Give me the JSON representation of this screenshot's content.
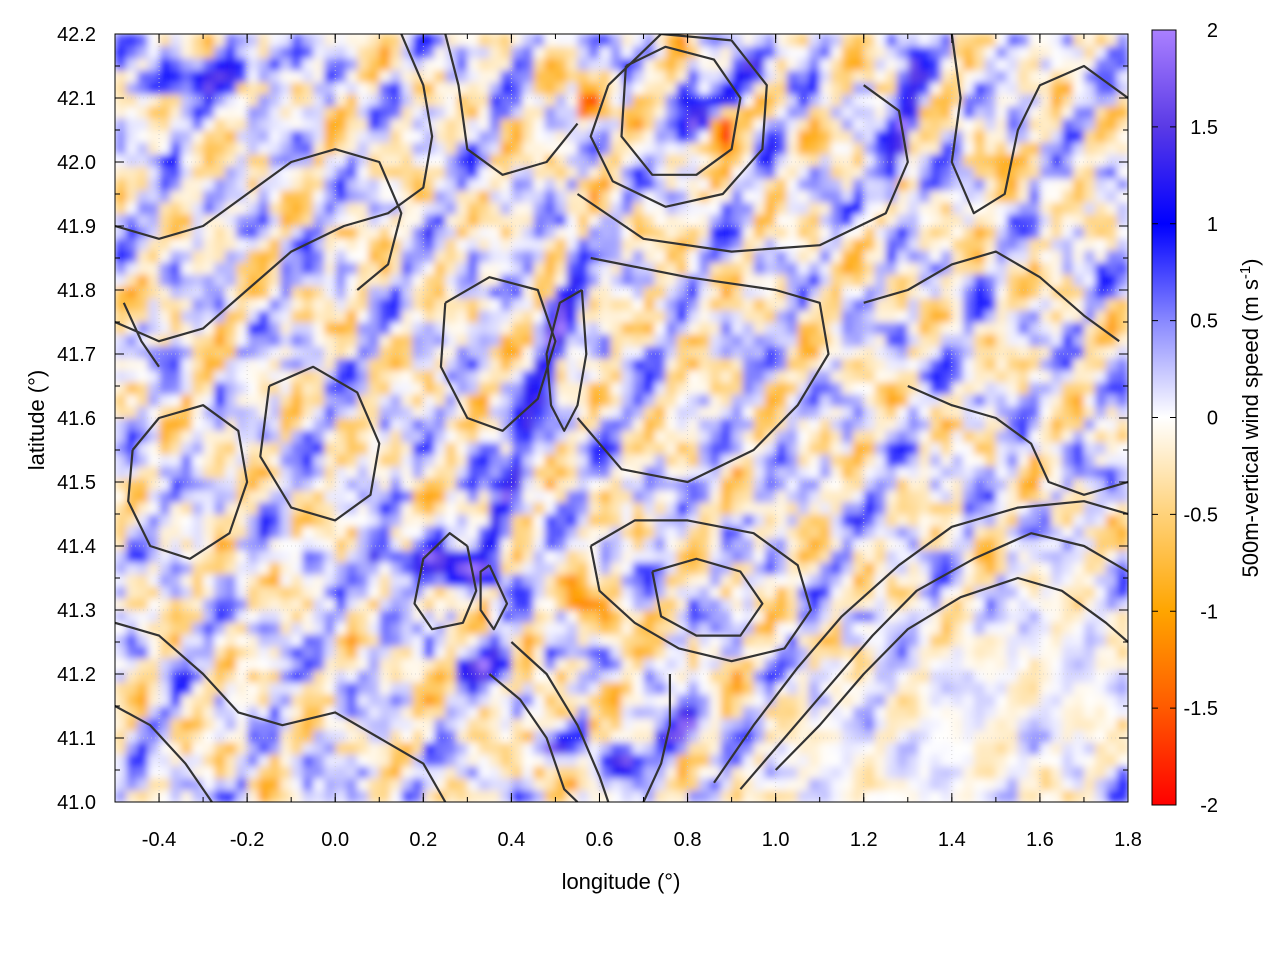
{
  "chart_data": {
    "type": "heatmap",
    "title": "",
    "xlabel": "longitude (°)",
    "ylabel": "latitude (°)",
    "colorbar_label": "500m-vertical wind speed (m s",
    "colorbar_label_sup": "-1",
    "colorbar_label_end": ")",
    "xlim": [
      -0.5,
      1.8
    ],
    "ylim": [
      41.0,
      42.2
    ],
    "clim": [
      -2,
      2
    ],
    "x_ticks": [
      "-0.4",
      "-0.2",
      "0.0",
      "0.2",
      "0.4",
      "0.6",
      "0.8",
      "1.0",
      "1.2",
      "1.4",
      "1.6",
      "1.8"
    ],
    "x_tick_values": [
      -0.4,
      -0.2,
      0.0,
      0.2,
      0.4,
      0.6,
      0.8,
      1.0,
      1.2,
      1.4,
      1.6,
      1.8
    ],
    "y_ticks": [
      "41.0",
      "41.1",
      "41.2",
      "41.3",
      "41.4",
      "41.5",
      "41.6",
      "41.7",
      "41.8",
      "41.9",
      "42.0",
      "42.1",
      "42.2"
    ],
    "y_tick_values": [
      41.0,
      41.1,
      41.2,
      41.3,
      41.4,
      41.5,
      41.6,
      41.7,
      41.8,
      41.9,
      42.0,
      42.1,
      42.2
    ],
    "colorbar_ticks": [
      "2",
      "1.5",
      "1",
      "0.5",
      "0",
      "-0.5",
      "-1",
      "-1.5",
      "-2"
    ],
    "colorbar_tick_values": [
      2,
      1.5,
      1,
      0.5,
      0,
      -0.5,
      -1,
      -1.5,
      -2
    ],
    "colormap": [
      {
        "value": -2.0,
        "color": "#ff0000"
      },
      {
        "value": -1.5,
        "color": "#ff5a00"
      },
      {
        "value": -1.0,
        "color": "#ffa500"
      },
      {
        "value": -0.5,
        "color": "#ffd27a"
      },
      {
        "value": 0.0,
        "color": "#ffffff"
      },
      {
        "value": 0.5,
        "color": "#8888ff"
      },
      {
        "value": 1.0,
        "color": "#0000ff"
      },
      {
        "value": 1.5,
        "color": "#5a3ae6"
      },
      {
        "value": 2.0,
        "color": "#aa80ff"
      }
    ],
    "grid": true,
    "contour_color": "#333333",
    "features": {
      "updraft_bands": [
        {
          "from": [
            0.35,
            41.4
          ],
          "to": [
            0.55,
            41.85
          ],
          "w": 1.2
        },
        {
          "from": [
            0.8,
            42.05
          ],
          "to": [
            0.95,
            42.15
          ],
          "w": 1.6
        },
        {
          "from": [
            1.25,
            41.95
          ],
          "to": [
            1.32,
            42.15
          ],
          "w": 1.3
        },
        {
          "from": [
            -0.45,
            42.12
          ],
          "to": [
            -0.15,
            42.15
          ],
          "w": 1.0
        },
        {
          "from": [
            0.3,
            41.21
          ],
          "to": [
            0.5,
            41.23
          ],
          "w": 1.1
        },
        {
          "from": [
            0.45,
            41.07
          ],
          "to": [
            0.55,
            41.1
          ],
          "w": 1.8
        },
        {
          "from": [
            0.66,
            41.06
          ],
          "to": [
            0.8,
            41.12
          ],
          "w": 1.7
        },
        {
          "from": [
            0.1,
            41.38
          ],
          "to": [
            0.35,
            41.36
          ],
          "w": 1.4
        }
      ],
      "downdraft_spots": [
        {
          "at": [
            0.88,
            42.05
          ],
          "w": -2.0
        },
        {
          "at": [
            0.46,
            41.06
          ],
          "w": -1.8
        },
        {
          "at": [
            0.52,
            41.12
          ],
          "w": -1.5
        },
        {
          "at": [
            0.7,
            41.08
          ],
          "w": -1.5
        },
        {
          "at": [
            0.43,
            41.22
          ],
          "w": -1.3
        },
        {
          "at": [
            0.55,
            41.32
          ],
          "w": -1.0
        },
        {
          "at": [
            0.62,
            41.28
          ],
          "w": -0.9
        },
        {
          "at": [
            1.5,
            41.98
          ],
          "w": -0.8
        },
        {
          "at": [
            0.58,
            42.09
          ],
          "w": -1.3
        }
      ],
      "calm_region": [
        {
          "at": [
            1.4,
            41.1
          ],
          "radius": 0.3
        },
        {
          "at": [
            1.65,
            41.2
          ],
          "radius": 0.25
        },
        {
          "at": [
            1.15,
            41.05
          ],
          "radius": 0.2
        }
      ]
    },
    "contours": [
      [
        [
          0.3,
          41.4
        ],
        [
          0.32,
          41.33
        ],
        [
          0.29,
          41.28
        ],
        [
          0.22,
          41.27
        ],
        [
          0.18,
          41.31
        ],
        [
          0.2,
          41.38
        ],
        [
          0.26,
          41.42
        ],
        [
          0.3,
          41.4
        ]
      ],
      [
        [
          0.35,
          41.37
        ],
        [
          0.39,
          41.31
        ],
        [
          0.36,
          41.27
        ],
        [
          0.33,
          41.3
        ],
        [
          0.33,
          41.36
        ],
        [
          0.35,
          41.37
        ]
      ],
      [
        [
          0.56,
          41.8
        ],
        [
          0.57,
          41.7
        ],
        [
          0.55,
          41.62
        ],
        [
          0.52,
          41.58
        ],
        [
          0.49,
          41.62
        ],
        [
          0.48,
          41.7
        ],
        [
          0.51,
          41.78
        ],
        [
          0.56,
          41.8
        ]
      ],
      [
        [
          -0.46,
          41.55
        ],
        [
          -0.4,
          41.6
        ],
        [
          -0.3,
          41.62
        ],
        [
          -0.22,
          41.58
        ],
        [
          -0.2,
          41.5
        ],
        [
          -0.24,
          41.42
        ],
        [
          -0.33,
          41.38
        ],
        [
          -0.42,
          41.4
        ],
        [
          -0.47,
          41.47
        ],
        [
          -0.46,
          41.55
        ]
      ],
      [
        [
          -0.15,
          41.65
        ],
        [
          -0.05,
          41.68
        ],
        [
          0.05,
          41.64
        ],
        [
          0.1,
          41.56
        ],
        [
          0.08,
          41.48
        ],
        [
          0.0,
          41.44
        ],
        [
          -0.1,
          41.46
        ],
        [
          -0.17,
          41.54
        ],
        [
          -0.15,
          41.65
        ]
      ],
      [
        [
          0.25,
          41.78
        ],
        [
          0.35,
          41.82
        ],
        [
          0.46,
          41.8
        ],
        [
          0.5,
          41.72
        ],
        [
          0.46,
          41.63
        ],
        [
          0.38,
          41.58
        ],
        [
          0.3,
          41.6
        ],
        [
          0.24,
          41.68
        ],
        [
          0.25,
          41.78
        ]
      ],
      [
        [
          0.66,
          42.15
        ],
        [
          0.75,
          42.18
        ],
        [
          0.86,
          42.16
        ],
        [
          0.92,
          42.1
        ],
        [
          0.9,
          42.02
        ],
        [
          0.82,
          41.98
        ],
        [
          0.72,
          41.98
        ],
        [
          0.65,
          42.04
        ],
        [
          0.66,
          42.15
        ]
      ],
      [
        [
          0.62,
          42.12
        ],
        [
          0.74,
          42.2
        ],
        [
          0.9,
          42.19
        ],
        [
          0.98,
          42.12
        ],
        [
          0.97,
          42.02
        ],
        [
          0.88,
          41.95
        ],
        [
          0.75,
          41.93
        ],
        [
          0.63,
          41.97
        ],
        [
          0.58,
          42.04
        ],
        [
          0.62,
          42.12
        ]
      ],
      [
        [
          0.55,
          41.95
        ],
        [
          0.7,
          41.88
        ],
        [
          0.9,
          41.86
        ],
        [
          1.1,
          41.87
        ],
        [
          1.25,
          41.92
        ],
        [
          1.3,
          42.0
        ],
        [
          1.28,
          42.08
        ],
        [
          1.2,
          42.12
        ]
      ],
      [
        [
          0.58,
          41.85
        ],
        [
          0.8,
          41.82
        ],
        [
          1.0,
          41.8
        ],
        [
          1.1,
          41.78
        ],
        [
          1.12,
          41.7
        ],
        [
          1.05,
          41.62
        ],
        [
          0.95,
          41.55
        ],
        [
          0.8,
          41.5
        ],
        [
          0.65,
          41.52
        ],
        [
          0.55,
          41.6
        ]
      ],
      [
        [
          0.58,
          41.4
        ],
        [
          0.68,
          41.44
        ],
        [
          0.8,
          41.44
        ],
        [
          0.95,
          41.42
        ],
        [
          1.05,
          41.37
        ],
        [
          1.08,
          41.3
        ],
        [
          1.02,
          41.24
        ],
        [
          0.9,
          41.22
        ],
        [
          0.78,
          41.24
        ],
        [
          0.68,
          41.28
        ],
        [
          0.6,
          41.33
        ],
        [
          0.58,
          41.4
        ]
      ],
      [
        [
          0.72,
          41.36
        ],
        [
          0.82,
          41.38
        ],
        [
          0.92,
          41.36
        ],
        [
          0.97,
          41.31
        ],
        [
          0.92,
          41.26
        ],
        [
          0.82,
          41.26
        ],
        [
          0.74,
          41.29
        ],
        [
          0.72,
          41.36
        ]
      ],
      [
        [
          1.0,
          41.05
        ],
        [
          1.1,
          41.12
        ],
        [
          1.2,
          41.2
        ],
        [
          1.3,
          41.27
        ],
        [
          1.42,
          41.32
        ],
        [
          1.55,
          41.35
        ],
        [
          1.65,
          41.33
        ],
        [
          1.75,
          41.28
        ],
        [
          1.8,
          41.25
        ]
      ],
      [
        [
          0.92,
          41.02
        ],
        [
          1.02,
          41.1
        ],
        [
          1.12,
          41.18
        ],
        [
          1.22,
          41.26
        ],
        [
          1.32,
          41.33
        ],
        [
          1.45,
          41.38
        ],
        [
          1.58,
          41.42
        ],
        [
          1.7,
          41.4
        ],
        [
          1.8,
          41.36
        ]
      ],
      [
        [
          0.86,
          41.03
        ],
        [
          0.95,
          41.12
        ],
        [
          1.05,
          41.21
        ],
        [
          1.15,
          41.29
        ],
        [
          1.28,
          41.37
        ],
        [
          1.4,
          41.43
        ],
        [
          1.55,
          41.46
        ],
        [
          1.7,
          41.47
        ],
        [
          1.8,
          41.45
        ]
      ],
      [
        [
          -0.5,
          41.28
        ],
        [
          -0.4,
          41.26
        ],
        [
          -0.3,
          41.2
        ],
        [
          -0.22,
          41.14
        ],
        [
          -0.12,
          41.12
        ],
        [
          0.0,
          41.14
        ],
        [
          0.1,
          41.1
        ],
        [
          0.2,
          41.06
        ],
        [
          0.25,
          41.0
        ]
      ],
      [
        [
          -0.5,
          41.15
        ],
        [
          -0.42,
          41.12
        ],
        [
          -0.34,
          41.06
        ],
        [
          -0.28,
          41.0
        ]
      ],
      [
        [
          0.35,
          41.2
        ],
        [
          0.42,
          41.16
        ],
        [
          0.48,
          41.1
        ],
        [
          0.52,
          41.02
        ],
        [
          0.55,
          41.0
        ]
      ],
      [
        [
          0.4,
          41.25
        ],
        [
          0.48,
          41.2
        ],
        [
          0.55,
          41.12
        ],
        [
          0.6,
          41.04
        ],
        [
          0.62,
          41.0
        ]
      ],
      [
        [
          0.7,
          41.0
        ],
        [
          0.74,
          41.06
        ],
        [
          0.76,
          41.12
        ],
        [
          0.76,
          41.2
        ]
      ],
      [
        [
          -0.5,
          41.9
        ],
        [
          -0.4,
          41.88
        ],
        [
          -0.3,
          41.9
        ],
        [
          -0.2,
          41.95
        ],
        [
          -0.1,
          42.0
        ],
        [
          0.0,
          42.02
        ],
        [
          0.1,
          42.0
        ],
        [
          0.15,
          41.92
        ],
        [
          0.12,
          41.84
        ],
        [
          0.05,
          41.8
        ]
      ],
      [
        [
          -0.5,
          41.75
        ],
        [
          -0.4,
          41.72
        ],
        [
          -0.3,
          41.74
        ],
        [
          -0.2,
          41.8
        ],
        [
          -0.1,
          41.86
        ],
        [
          0.02,
          41.9
        ],
        [
          0.12,
          41.92
        ],
        [
          0.2,
          41.96
        ],
        [
          0.22,
          42.04
        ],
        [
          0.2,
          42.12
        ],
        [
          0.15,
          42.2
        ]
      ],
      [
        [
          0.25,
          42.2
        ],
        [
          0.28,
          42.12
        ],
        [
          0.3,
          42.02
        ],
        [
          0.38,
          41.98
        ],
        [
          0.48,
          42.0
        ],
        [
          0.55,
          42.06
        ]
      ],
      [
        [
          1.4,
          42.2
        ],
        [
          1.42,
          42.1
        ],
        [
          1.4,
          42.0
        ],
        [
          1.45,
          41.92
        ],
        [
          1.52,
          41.95
        ],
        [
          1.55,
          42.05
        ],
        [
          1.6,
          42.12
        ],
        [
          1.7,
          42.15
        ],
        [
          1.8,
          42.1
        ]
      ],
      [
        [
          1.2,
          41.78
        ],
        [
          1.3,
          41.8
        ],
        [
          1.4,
          41.84
        ],
        [
          1.5,
          41.86
        ],
        [
          1.6,
          41.82
        ],
        [
          1.7,
          41.76
        ],
        [
          1.78,
          41.72
        ]
      ],
      [
        [
          1.3,
          41.65
        ],
        [
          1.4,
          41.62
        ],
        [
          1.5,
          41.6
        ],
        [
          1.58,
          41.56
        ],
        [
          1.62,
          41.5
        ],
        [
          1.7,
          41.48
        ],
        [
          1.8,
          41.5
        ]
      ],
      [
        [
          -0.48,
          41.78
        ],
        [
          -0.44,
          41.72
        ],
        [
          -0.4,
          41.68
        ]
      ]
    ]
  }
}
